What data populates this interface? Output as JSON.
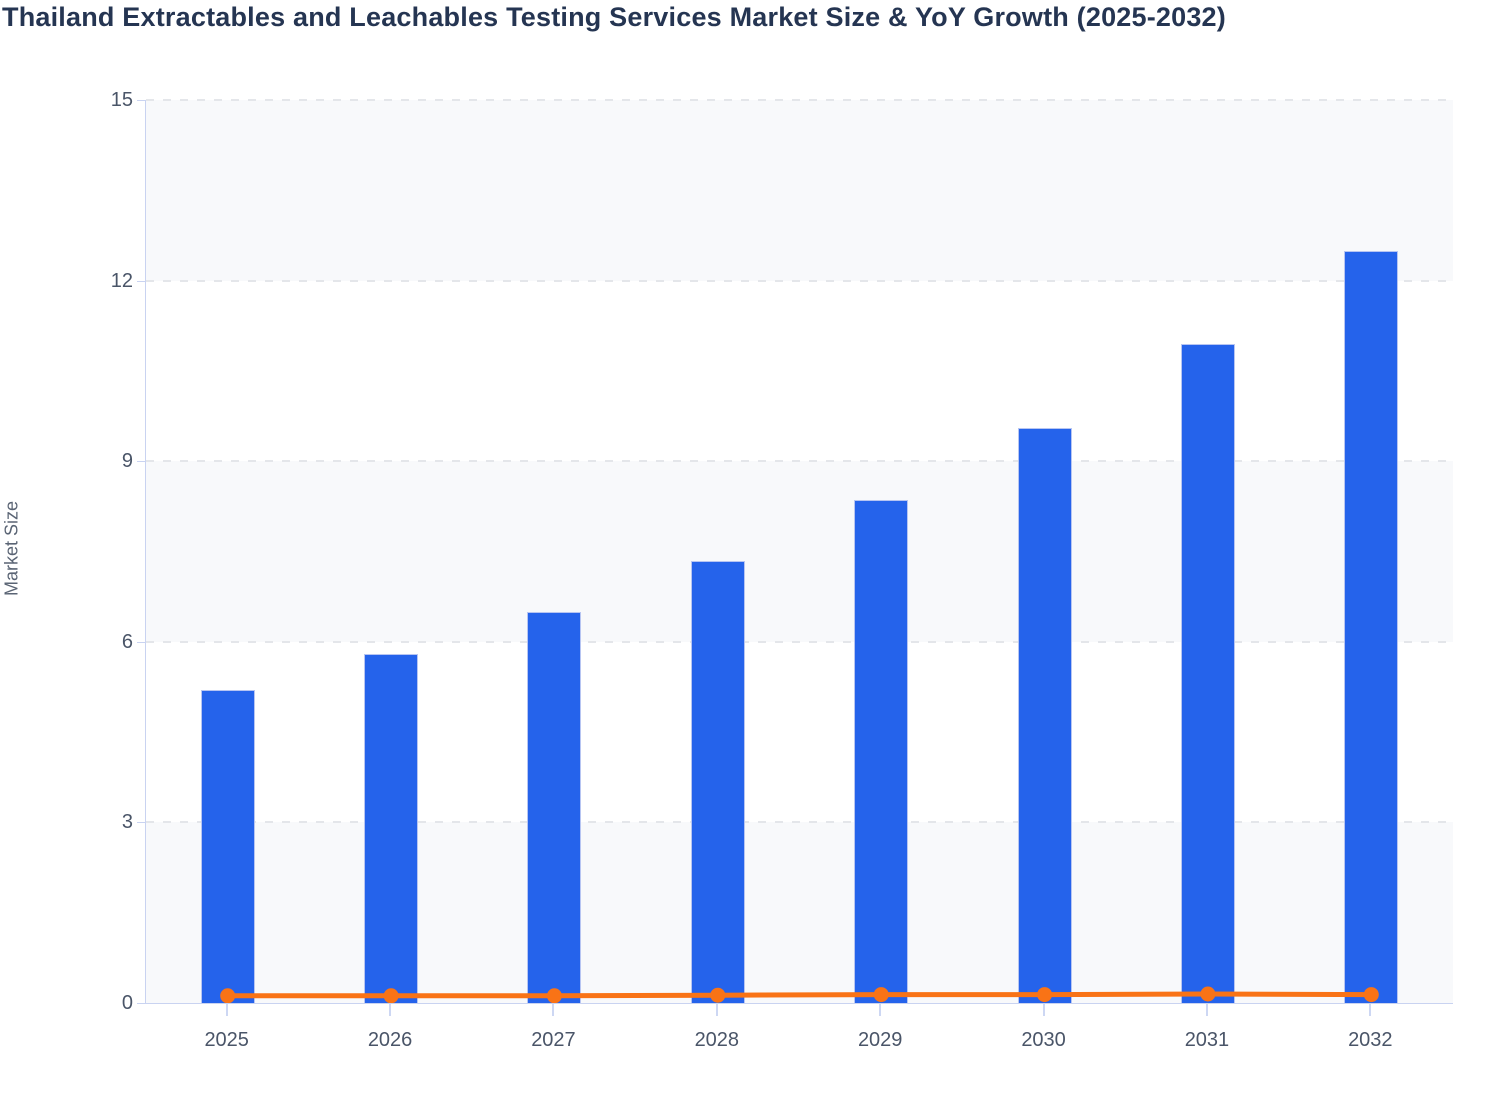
{
  "chart": {
    "title": "Thailand Extractables and Leachables Testing Services Market Size & YoY Growth (2025-2032)",
    "ylabel": "Market Size"
  },
  "chart_data": {
    "type": "bar",
    "title": "Thailand Extractables and Leachables Testing Services Market Size & YoY Growth (2025-2032)",
    "categories": [
      "2025",
      "2026",
      "2027",
      "2028",
      "2029",
      "2030",
      "2031",
      "2032"
    ],
    "series": [
      {
        "name": "Market Size",
        "type": "bar",
        "values": [
          5.2,
          5.8,
          6.5,
          7.35,
          8.35,
          9.55,
          10.95,
          12.5
        ]
      },
      {
        "name": "YoY Growth",
        "type": "line",
        "values": [
          0.12,
          0.12,
          0.12,
          0.13,
          0.14,
          0.14,
          0.15,
          0.14
        ]
      }
    ],
    "xlabel": "",
    "ylabel": "Market Size",
    "ylim": [
      0,
      15
    ],
    "yticks": [
      0,
      3,
      6,
      9,
      12,
      15
    ],
    "grid": "horizontal-dashed",
    "legend": "none",
    "plot_bands": "alternating-horizontal"
  },
  "colors": {
    "bar": "#2563eb",
    "bar_border": "#b7c5f2",
    "line": "#f97316",
    "band": "#f8f9fb",
    "gridline": "#e4e6ea",
    "axis": "#c9d3f1",
    "tick_label": "#4a5568",
    "title": "#253552",
    "axis_title": "#5a6474"
  }
}
